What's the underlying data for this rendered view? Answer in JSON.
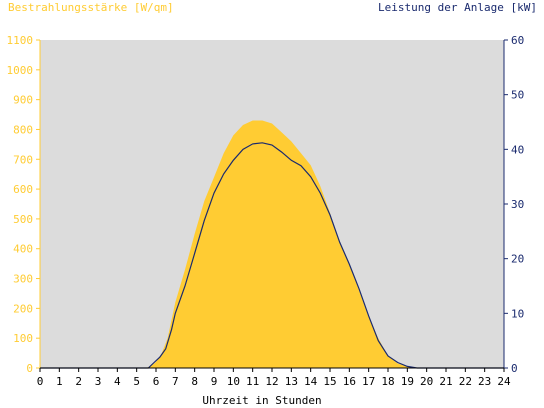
{
  "chart_data": {
    "type": "area",
    "left_title": "Bestrahlungsstärke [W/qm]",
    "right_title": "Leistung der Anlage [kW]",
    "xlabel": "Uhrzeit in Stunden",
    "x_ticks": [
      "0",
      "1",
      "2",
      "3",
      "4",
      "5",
      "6",
      "7",
      "8",
      "9",
      "10",
      "11",
      "12",
      "13",
      "14",
      "15",
      "16",
      "17",
      "18",
      "19",
      "20",
      "21",
      "22",
      "23",
      "24"
    ],
    "xlim": [
      0,
      24
    ],
    "y_left_ticks": [
      "0",
      "100",
      "200",
      "300",
      "400",
      "500",
      "600",
      "700",
      "800",
      "900",
      "1000",
      "1100"
    ],
    "y_left_lim": [
      0,
      1100
    ],
    "y_right_ticks": [
      "0",
      "10",
      "20",
      "30",
      "40",
      "50",
      "60"
    ],
    "y_right_lim": [
      0,
      60
    ],
    "grid": false,
    "colors": {
      "irradiance": "#ffcc33",
      "power": "#1a2a6e",
      "plot_bg": "#dcdcdc",
      "left_axis": "#ffcc33",
      "right_axis": "#1a2a6e",
      "x_axis": "#000000"
    },
    "series": [
      {
        "axis": "left",
        "style": "area",
        "x": [
          0,
          5.5,
          5.8,
          6.0,
          6.3,
          6.6,
          7.0,
          7.5,
          8.0,
          8.5,
          9.0,
          9.5,
          10.0,
          10.5,
          11.0,
          11.5,
          12.0,
          12.5,
          13.0,
          13.5,
          14.0,
          14.5,
          15.0,
          15.5,
          16.0,
          16.5,
          17.0,
          17.5,
          18.0,
          18.5,
          19.0,
          19.3,
          19.5,
          24
        ],
        "values": [
          0,
          0,
          10,
          20,
          50,
          100,
          220,
          330,
          450,
          560,
          640,
          720,
          780,
          815,
          830,
          830,
          820,
          790,
          760,
          720,
          680,
          610,
          520,
          420,
          350,
          260,
          170,
          100,
          40,
          15,
          5,
          0,
          0,
          0
        ]
      },
      {
        "axis": "right",
        "style": "line",
        "x": [
          0,
          5.6,
          5.9,
          6.2,
          6.5,
          6.8,
          7.0,
          7.5,
          8.0,
          8.5,
          9.0,
          9.5,
          10.0,
          10.5,
          11.0,
          11.5,
          12.0,
          12.5,
          13.0,
          13.5,
          14.0,
          14.5,
          15.0,
          15.5,
          16.0,
          16.5,
          17.0,
          17.5,
          18.0,
          18.5,
          19.0,
          19.5,
          24
        ],
        "values": [
          0,
          0,
          1,
          2,
          3.5,
          7,
          10,
          15,
          21,
          27,
          32,
          35.5,
          38,
          40,
          41,
          41.2,
          40.8,
          39.5,
          38,
          37,
          35,
          32,
          28,
          23,
          19,
          14.5,
          9.5,
          5,
          2.2,
          1,
          0.3,
          0,
          0
        ]
      }
    ]
  }
}
